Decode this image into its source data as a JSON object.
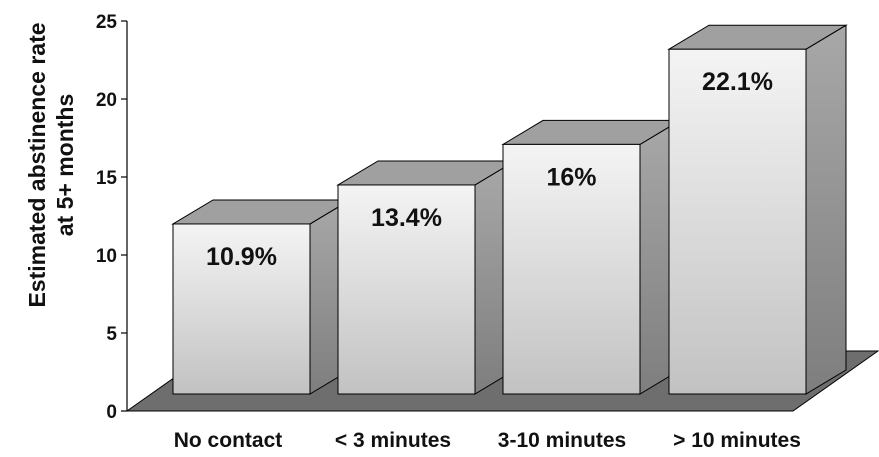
{
  "chart_data": {
    "type": "bar",
    "title": "",
    "xlabel": "",
    "ylabel_line1": "Estimated abstinence rate",
    "ylabel_line2": "at 5+ months",
    "categories": [
      "No contact",
      "< 3 minutes",
      "3-10 minutes",
      "> 10 minutes"
    ],
    "values": [
      10.9,
      13.4,
      16,
      22.1
    ],
    "value_labels": [
      "10.9%",
      "13.4%",
      "16%",
      "22.1%"
    ],
    "ylim": [
      0,
      25
    ],
    "yticks": [
      0,
      5,
      10,
      15,
      20,
      25
    ],
    "grid": false,
    "legend": "none",
    "style": "3d-bar",
    "colors": {
      "floor": "#6e6e6e",
      "bar_top": "#a0a0a0",
      "bar_side": "#8c8c8c",
      "bar_front_light": "#f4f4f4",
      "bar_front_dark": "#c2c2c2",
      "outline": "#000000"
    }
  }
}
